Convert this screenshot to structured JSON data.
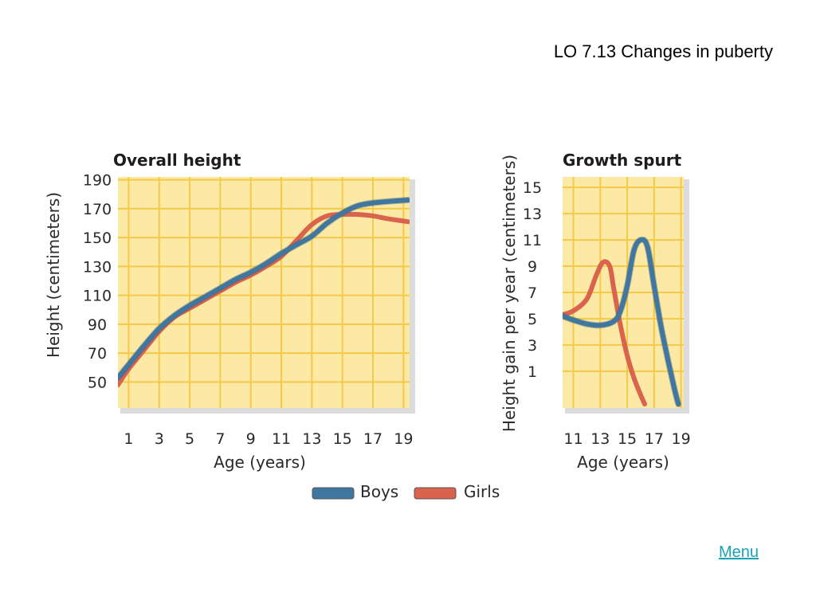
{
  "header": {
    "title": "LO 7.13  Changes in puberty"
  },
  "footer": {
    "menu_label": "Menu"
  },
  "legend": {
    "items": [
      {
        "label": "Boys",
        "color": "#3f77a0"
      },
      {
        "label": "Girls",
        "color": "#d9634c"
      }
    ]
  },
  "colors": {
    "plot_bg": "#fde9a6",
    "grid": "#f5c948",
    "shadow": "#dcdcdc"
  },
  "chart_data": [
    {
      "type": "line",
      "title": "Overall height",
      "xlabel": "Age (years)",
      "ylabel": "Height (centimeters)",
      "xlim": [
        0.3,
        19.4
      ],
      "ylim": [
        32,
        192
      ],
      "xticks": [
        1,
        3,
        5,
        7,
        9,
        11,
        13,
        15,
        17,
        19
      ],
      "yticks": [
        50,
        70,
        90,
        110,
        130,
        150,
        170,
        190
      ],
      "grid": true,
      "series": [
        {
          "name": "Boys",
          "color": "#3f77a0",
          "points": [
            [
              0.3,
              53
            ],
            [
              1,
              62
            ],
            [
              2,
              75
            ],
            [
              3,
              87
            ],
            [
              4,
              96
            ],
            [
              5,
              103
            ],
            [
              6,
              109
            ],
            [
              7,
              115
            ],
            [
              8,
              121
            ],
            [
              9,
              126
            ],
            [
              10,
              132
            ],
            [
              11,
              139
            ],
            [
              12,
              145
            ],
            [
              13,
              151
            ],
            [
              14,
              160
            ],
            [
              15,
              167
            ],
            [
              16,
              172
            ],
            [
              17,
              174
            ],
            [
              18,
              175
            ],
            [
              19.3,
              176
            ]
          ]
        },
        {
          "name": "Girls",
          "color": "#d9634c",
          "points": [
            [
              0.3,
              48
            ],
            [
              1,
              59
            ],
            [
              2,
              72
            ],
            [
              3,
              85
            ],
            [
              4,
              95
            ],
            [
              5,
              101
            ],
            [
              6,
              107
            ],
            [
              7,
              113
            ],
            [
              8,
              119
            ],
            [
              9,
              124
            ],
            [
              10,
              130
            ],
            [
              11,
              137
            ],
            [
              12,
              148
            ],
            [
              13,
              159
            ],
            [
              14,
              165
            ],
            [
              15,
              166
            ],
            [
              16,
              166
            ],
            [
              17,
              165
            ],
            [
              18,
              163
            ],
            [
              19.3,
              161
            ]
          ]
        }
      ]
    },
    {
      "type": "line",
      "title": "Growth spurt",
      "xlabel": "Age (years)",
      "ylabel": "Height gain per year (centimeters)",
      "xlim": [
        10.2,
        19.2
      ],
      "ylim": [
        -1.8,
        15.8
      ],
      "xticks": [
        11,
        13,
        15,
        17,
        19
      ],
      "xtick_labels": [
        "11",
        "13",
        "15",
        "17",
        "19"
      ],
      "yticks": [
        1,
        3,
        5,
        7,
        9,
        11,
        13,
        15
      ],
      "grid": true,
      "series": [
        {
          "name": "Boys",
          "color": "#3f77a0",
          "points": [
            [
              10.2,
              5.2
            ],
            [
              11,
              4.9
            ],
            [
              12,
              4.6
            ],
            [
              13,
              4.5
            ],
            [
              14,
              4.8
            ],
            [
              14.5,
              5.6
            ],
            [
              15,
              7.5
            ],
            [
              15.5,
              10.2
            ],
            [
              16,
              11
            ],
            [
              16.5,
              10.5
            ],
            [
              17,
              7.5
            ],
            [
              17.5,
              4.5
            ],
            [
              18,
              2
            ],
            [
              18.5,
              -0.3
            ],
            [
              18.8,
              -1.5
            ]
          ]
        },
        {
          "name": "Girls",
          "color": "#d9634c",
          "points": [
            [
              10.2,
              5.3
            ],
            [
              11,
              5.6
            ],
            [
              12,
              6.5
            ],
            [
              12.7,
              8.3
            ],
            [
              13.2,
              9.3
            ],
            [
              13.7,
              9
            ],
            [
              14,
              7.3
            ],
            [
              14.5,
              4.5
            ],
            [
              15,
              2.2
            ],
            [
              15.5,
              0.5
            ],
            [
              16,
              -0.8
            ],
            [
              16.3,
              -1.5
            ]
          ]
        }
      ]
    }
  ]
}
